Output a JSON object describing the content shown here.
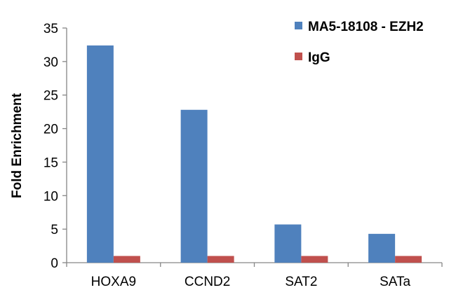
{
  "chart_data": {
    "type": "bar",
    "title": "",
    "xlabel": "",
    "ylabel": "Fold Enrichment",
    "categories": [
      "HOXA9",
      "CCND2",
      "SAT2",
      "SATa"
    ],
    "series": [
      {
        "name": "MA5-18108 - EZH2",
        "color": "#4f81bd",
        "values": [
          32.4,
          22.8,
          5.7,
          4.3
        ]
      },
      {
        "name": "IgG",
        "color": "#c0504d",
        "values": [
          1.0,
          1.0,
          1.0,
          1.0
        ]
      }
    ],
    "ylim": [
      0,
      35
    ],
    "yticks": [
      0,
      5,
      10,
      15,
      20,
      25,
      30,
      35
    ],
    "grid": false,
    "legend_position": "top-right"
  }
}
